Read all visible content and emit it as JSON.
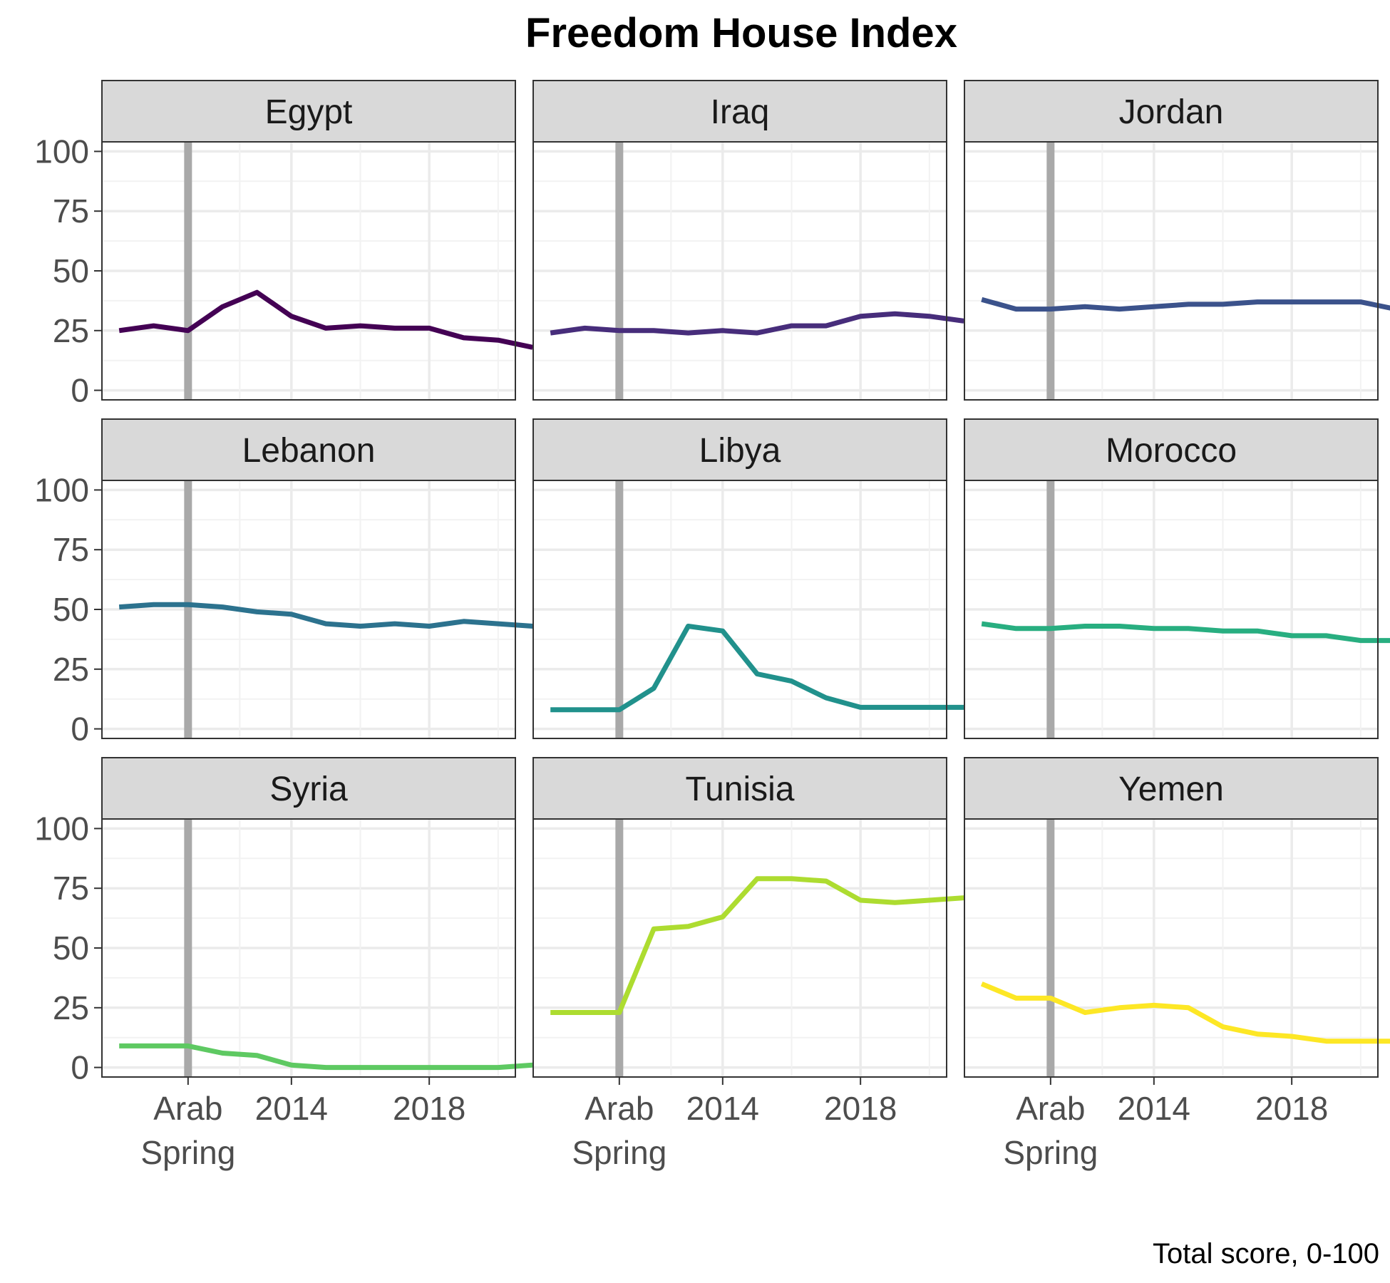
{
  "chart_data": {
    "type": "line",
    "title": "Freedom House Index",
    "caption": "Total score, 0-100",
    "xlabel": "",
    "ylabel": "",
    "xlim": [
      2008.5,
      2020.5
    ],
    "ylim": [
      -4,
      104
    ],
    "x_ticks": [
      {
        "value": 2011,
        "label": [
          "Arab",
          "Spring"
        ]
      },
      {
        "value": 2014,
        "label": [
          "2014"
        ]
      },
      {
        "value": 2018,
        "label": [
          "2018"
        ]
      }
    ],
    "y_ticks": [
      0,
      25,
      50,
      75,
      100
    ],
    "reference_line": {
      "x": 2011,
      "color": "#a9a9a9"
    },
    "grid": true,
    "legend": "none",
    "years": [
      2009,
      2010,
      2011,
      2012,
      2013,
      2014,
      2015,
      2016,
      2017,
      2018,
      2019,
      2020,
      2021
    ],
    "series": [
      {
        "name": "Egypt",
        "color": "#440154",
        "values": [
          25,
          27,
          25,
          35,
          41,
          31,
          26,
          27,
          26,
          26,
          22,
          21,
          18
        ]
      },
      {
        "name": "Iraq",
        "color": "#472d7b",
        "values": [
          24,
          26,
          25,
          25,
          24,
          25,
          24,
          27,
          27,
          31,
          32,
          31,
          29
        ]
      },
      {
        "name": "Jordan",
        "color": "#3b528b",
        "values": [
          38,
          34,
          34,
          35,
          34,
          35,
          36,
          36,
          37,
          37,
          37,
          37,
          34
        ]
      },
      {
        "name": "Lebanon",
        "color": "#2c728e",
        "values": [
          51,
          52,
          52,
          51,
          49,
          48,
          44,
          43,
          44,
          43,
          45,
          44,
          43
        ]
      },
      {
        "name": "Libya",
        "color": "#21918c",
        "values": [
          8,
          8,
          8,
          17,
          43,
          41,
          23,
          20,
          13,
          9,
          9,
          9,
          9
        ]
      },
      {
        "name": "Morocco",
        "color": "#28ae80",
        "values": [
          44,
          42,
          42,
          43,
          43,
          42,
          42,
          41,
          41,
          39,
          39,
          37,
          37
        ]
      },
      {
        "name": "Syria",
        "color": "#5ec962",
        "values": [
          9,
          9,
          9,
          6,
          5,
          1,
          0,
          0,
          0,
          0,
          0,
          0,
          1
        ]
      },
      {
        "name": "Tunisia",
        "color": "#addc30",
        "values": [
          23,
          23,
          23,
          58,
          59,
          63,
          79,
          79,
          78,
          70,
          69,
          70,
          71
        ]
      },
      {
        "name": "Yemen",
        "color": "#fde725",
        "values": [
          35,
          29,
          29,
          23,
          25,
          26,
          25,
          17,
          14,
          13,
          11,
          11,
          11
        ]
      }
    ]
  }
}
